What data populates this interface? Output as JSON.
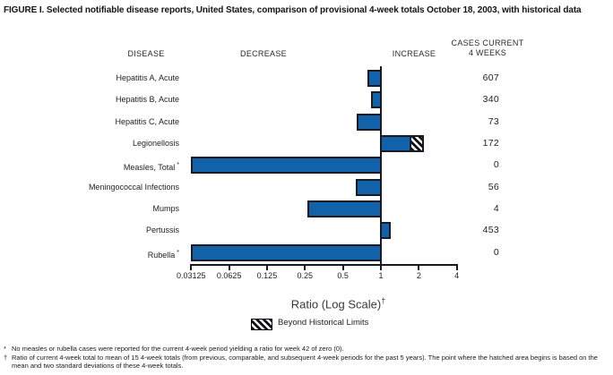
{
  "figure_title": "FIGURE I. Selected notifiable disease reports, United States, comparison of provisional 4-week totals October 18, 2003, with historical data",
  "column_headers": {
    "disease": "DISEASE",
    "decrease": "DECREASE",
    "increase": "INCREASE",
    "cases_line1": "CASES CURRENT",
    "cases_line2": "4 WEEKS"
  },
  "chart_data": {
    "type": "bar",
    "orientation": "horizontal",
    "x_scale": "log2",
    "xlabel": "Ratio (Log Scale)",
    "xlabel_mark": "†",
    "xlim": [
      0.03125,
      4
    ],
    "baseline": 1,
    "grid": false,
    "axis_ticks": [
      0.03125,
      0.0625,
      0.125,
      0.25,
      0.5,
      1,
      2,
      4
    ],
    "axis_tick_labels": [
      "0.03125",
      "0.0625",
      "0.125",
      "0.25",
      "0.5",
      "1",
      "2",
      "4"
    ],
    "legend": {
      "swatch": "hatched",
      "label": "Beyond Historical Limits",
      "position": "below-axis"
    },
    "rows": [
      {
        "disease": "Hepatitis A, Acute",
        "ratio": 0.78,
        "cases": "607"
      },
      {
        "disease": "Hepatitis B, Acute",
        "ratio": 0.84,
        "cases": "340"
      },
      {
        "disease": "Hepatitis C, Acute",
        "ratio": 0.64,
        "cases": "73"
      },
      {
        "disease": "Legionellosis",
        "ratio": 2.2,
        "beyond_limits_from": 1.7,
        "cases": "172"
      },
      {
        "disease": "Measles, Total",
        "mark": "*",
        "ratio": 0,
        "clipped_at_axis_min": true,
        "cases": "0"
      },
      {
        "disease": "Meningococcal Infections",
        "ratio": 0.63,
        "cases": "56"
      },
      {
        "disease": "Mumps",
        "ratio": 0.26,
        "cases": "4"
      },
      {
        "disease": "Pertussis",
        "ratio": 1.2,
        "cases": "453"
      },
      {
        "disease": "Rubella",
        "mark": "*",
        "ratio": 0,
        "clipped_at_axis_min": true,
        "cases": "0"
      }
    ]
  },
  "footnotes": [
    {
      "symbol": "*",
      "text": "No measles or rubella cases were reported for the current 4-week period yielding a ratio for week 42 of zero (0)."
    },
    {
      "symbol": "†",
      "text": "Ratio of current 4-week total to mean of 15 4-week totals (from previous, comparable, and subsequent 4-week periods for the past 5 years). The point where the hatched area begins is based on the mean and two standard deviations of these 4-week totals."
    }
  ],
  "colors": {
    "bar_fill": "#1262aa",
    "bar_border": "#1a1a26",
    "axis_line": "#1a1a26",
    "hatch_stripe": "#101018",
    "text": "#1a1a1a"
  }
}
